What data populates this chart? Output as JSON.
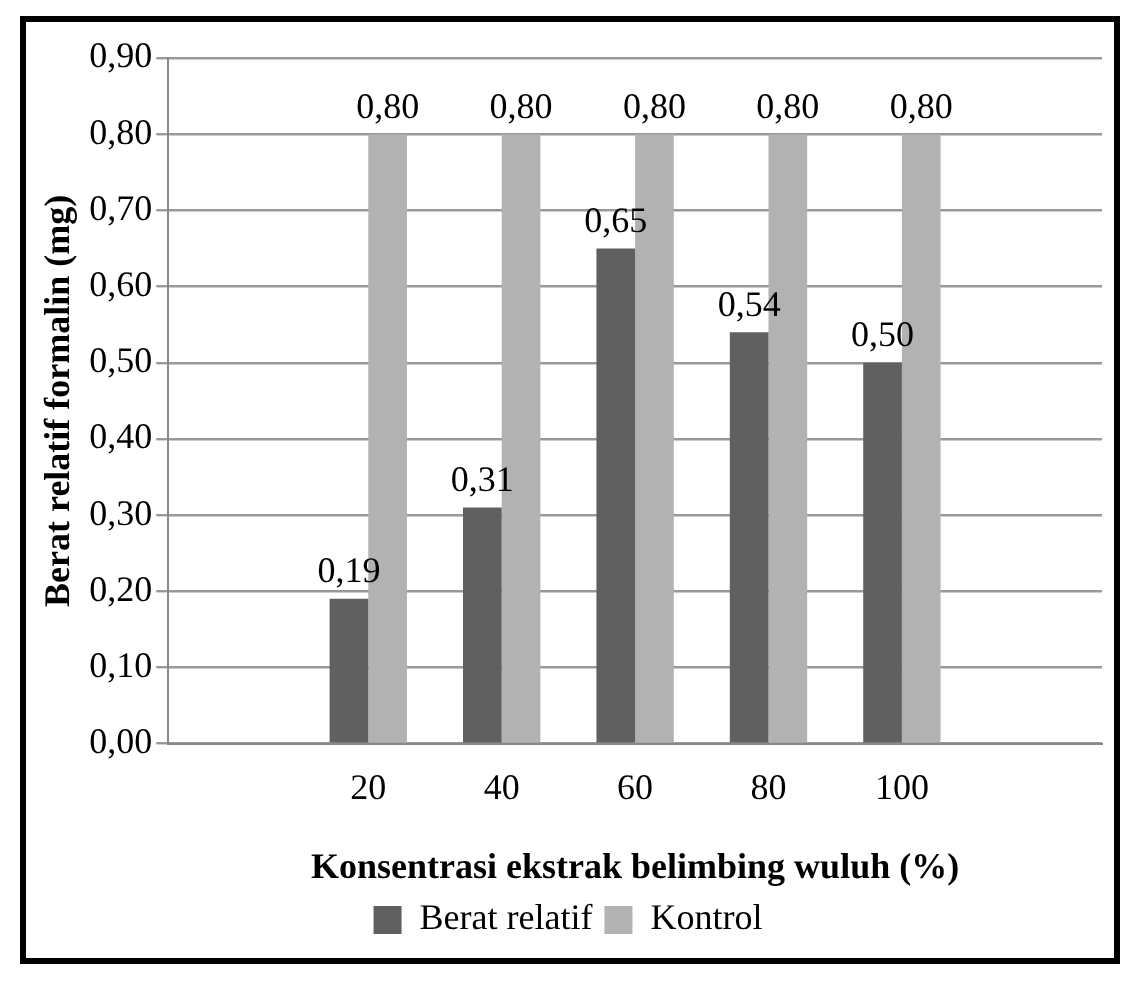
{
  "chart_data": {
    "type": "bar",
    "xlabel": "Konsentrasi ekstrak belimbing wuluh (%)",
    "ylabel": "Berat relatif formalin (mg)",
    "categories": [
      null,
      "20",
      "40",
      "60",
      "80",
      "100",
      null
    ],
    "series": [
      {
        "name": "Berat relatif",
        "color": "#606060",
        "values": [
          null,
          0.19,
          0.31,
          0.65,
          0.54,
          0.5,
          null
        ],
        "value_labels": [
          null,
          "0,19",
          "0,31",
          "0,65",
          "0,54",
          "0,50",
          null
        ]
      },
      {
        "name": "Kontrol",
        "color": "#b2b2b2",
        "values": [
          null,
          0.8,
          0.8,
          0.8,
          0.8,
          0.8,
          null
        ],
        "value_labels": [
          null,
          "0,80",
          "0,80",
          "0,80",
          "0,80",
          "0,80",
          null
        ]
      }
    ],
    "ylim": [
      0,
      0.9
    ],
    "yticks": [
      {
        "value": 0,
        "label": "0,00"
      },
      {
        "value": 0.1,
        "label": "0,10"
      },
      {
        "value": 0.2,
        "label": "0,20"
      },
      {
        "value": 0.3,
        "label": "0,30"
      },
      {
        "value": 0.4,
        "label": "0,40"
      },
      {
        "value": 0.5,
        "label": "0,50"
      },
      {
        "value": 0.6,
        "label": "0,60"
      },
      {
        "value": 0.7,
        "label": "0,70"
      },
      {
        "value": 0.8,
        "label": "0,80"
      },
      {
        "value": 0.9,
        "label": "0,90"
      }
    ],
    "grid": "y",
    "legend": "bottom"
  }
}
